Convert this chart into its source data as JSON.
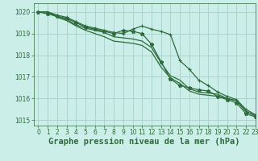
{
  "title": "Graphe pression niveau de la mer (hPa)",
  "bg_color": "#cceee8",
  "grid_color": "#aad4ce",
  "line_color": "#2d6b3c",
  "xlim": [
    -0.5,
    23
  ],
  "ylim": [
    1014.75,
    1020.4
  ],
  "yticks": [
    1015,
    1016,
    1017,
    1018,
    1019,
    1020
  ],
  "xticks": [
    0,
    1,
    2,
    3,
    4,
    5,
    6,
    7,
    8,
    9,
    10,
    11,
    12,
    13,
    14,
    15,
    16,
    17,
    18,
    19,
    20,
    21,
    22,
    23
  ],
  "series": [
    [
      1020.0,
      1020.0,
      1019.85,
      1019.75,
      1019.55,
      1019.35,
      1019.25,
      1019.15,
      1019.05,
      1019.0,
      1019.2,
      1019.35,
      1019.2,
      1019.1,
      1018.95,
      1017.75,
      1017.35,
      1016.85,
      1016.6,
      1016.3,
      1016.1,
      1015.95,
      1015.5,
      1015.25
    ],
    [
      1020.0,
      1020.0,
      1019.8,
      1019.65,
      1019.4,
      1019.25,
      1019.15,
      1019.05,
      1018.85,
      1018.8,
      1018.75,
      1018.65,
      1018.35,
      1017.65,
      1017.05,
      1016.85,
      1016.45,
      1016.3,
      1016.25,
      1016.2,
      1016.0,
      1015.9,
      1015.4,
      1015.2
    ],
    [
      1020.0,
      1020.0,
      1019.75,
      1019.6,
      1019.35,
      1019.15,
      1019.0,
      1018.85,
      1018.65,
      1018.6,
      1018.55,
      1018.45,
      1018.15,
      1017.45,
      1016.95,
      1016.7,
      1016.35,
      1016.2,
      1016.15,
      1016.1,
      1016.0,
      1015.9,
      1015.42,
      1015.2
    ],
    [
      1020.0,
      1019.9,
      1019.8,
      1019.7,
      1019.5,
      1019.3,
      1019.2,
      1019.1,
      1019.0,
      1019.15,
      1019.1,
      1019.0,
      1018.5,
      1017.7,
      1016.9,
      1016.6,
      1016.5,
      1016.4,
      1016.35,
      1016.1,
      1015.95,
      1015.8,
      1015.3,
      1015.15
    ]
  ],
  "title_fontsize": 7.5,
  "tick_fontsize": 5.5
}
